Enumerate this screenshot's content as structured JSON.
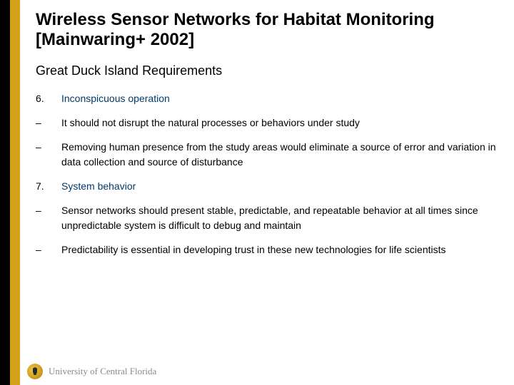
{
  "colors": {
    "stripe_left": "#000000",
    "stripe_gold": "#d4a017",
    "title_color": "#000000",
    "heading_color": "#003a6a",
    "body_color": "#000000",
    "footer_color": "#8a8a8a",
    "background": "#ffffff"
  },
  "title": "Wireless Sensor Networks for Habitat Monitoring\n[Mainwaring+ 2002]",
  "subtitle": "Great Duck Island Requirements",
  "items": [
    {
      "marker": "6.",
      "text": "Inconspicuous operation",
      "style": "heading"
    },
    {
      "marker": "–",
      "text": "It should not disrupt the natural processes or behaviors under study",
      "style": "body"
    },
    {
      "marker": "–",
      "text": "Removing human presence from the study areas would eliminate a source of error and variation in data collection and source of disturbance",
      "style": "body"
    },
    {
      "marker": "7.",
      "text": "System behavior",
      "style": "heading"
    },
    {
      "marker": "–",
      "text": "Sensor networks should present stable, predictable, and repeatable behavior at all times since unpredictable system is difficult to debug and maintain",
      "style": "body"
    },
    {
      "marker": "–",
      "text": "Predictability is essential in developing trust in these new technologies for life scientists",
      "style": "body"
    }
  ],
  "footer": {
    "university": "University of Central Florida"
  },
  "typography": {
    "title_fontsize": 24,
    "subtitle_fontsize": 18,
    "body_fontsize": 14,
    "footer_fontsize": 13
  }
}
